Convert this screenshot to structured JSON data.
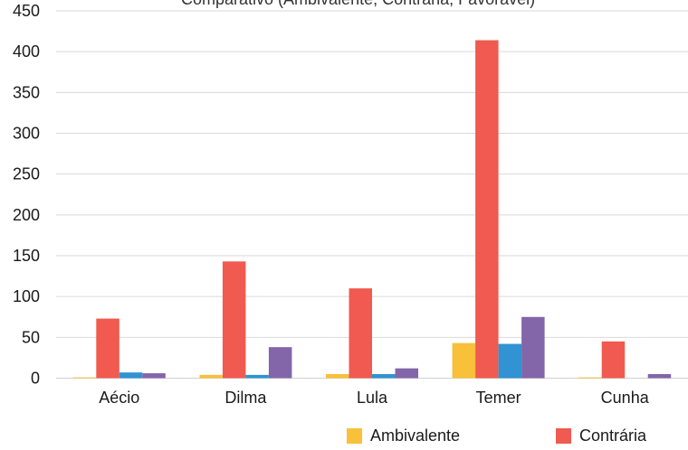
{
  "chart_data": {
    "type": "bar",
    "title": "Comparativo (Ambivalente, Contrária, Favorável)",
    "categories": [
      "Aécio",
      "Dilma",
      "Lula",
      "Temer",
      "Cunha"
    ],
    "series": [
      {
        "name": "Ambivalente",
        "values": [
          1,
          4,
          5,
          43,
          1
        ],
        "color": "#F9C03A"
      },
      {
        "name": "Contrária",
        "values": [
          73,
          143,
          110,
          414,
          45
        ],
        "color": "#F05A50"
      },
      {
        "name": "",
        "values": [
          7,
          4,
          5,
          42,
          0
        ],
        "color": "#3193D2"
      },
      {
        "name": "",
        "values": [
          6,
          38,
          12,
          75,
          5
        ],
        "color": "#8365A9"
      }
    ],
    "ylim": [
      0,
      450
    ],
    "yticks": [
      0,
      50,
      100,
      150,
      200,
      250,
      300,
      350,
      400,
      450
    ],
    "grid": true,
    "legend_placement": "bottom-right"
  }
}
